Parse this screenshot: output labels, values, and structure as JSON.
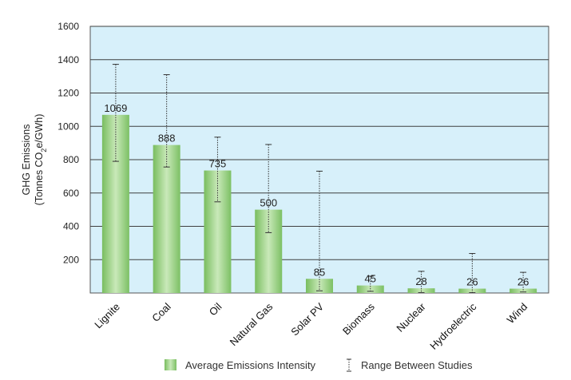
{
  "chart_data": {
    "type": "bar",
    "categories": [
      "Lignite",
      "Coal",
      "Oil",
      "Natural Gas",
      "Solar PV",
      "Biomass",
      "Nuclear",
      "Hydroelectric",
      "Wind"
    ],
    "series": [
      {
        "name": "Average Emissions Intensity",
        "values": [
          1069,
          888,
          735,
          500,
          85,
          45,
          28,
          26,
          26
        ],
        "range_low": [
          790,
          756,
          547,
          362,
          13,
          10,
          2,
          2,
          6
        ],
        "range_high": [
          1372,
          1310,
          935,
          891,
          731,
          101,
          130,
          237,
          124
        ]
      }
    ],
    "data_labels": [
      "1069",
      "888",
      "735",
      "500",
      "85",
      "45",
      "28",
      "26",
      "26"
    ],
    "title": "",
    "ylabel_line1": "GHG Emissions",
    "ylabel_line2_pre": "(Tonnes CO",
    "ylabel_line2_sub": "2",
    "ylabel_line2_post": "e/GWh)",
    "xlabel": "",
    "ylim": [
      0,
      1600
    ],
    "yticks": [
      200,
      400,
      600,
      800,
      1000,
      1200,
      1400,
      1600
    ],
    "grid": true,
    "legend": {
      "position": "bottom",
      "bar_label": "Average Emissions Intensity",
      "range_label": "Range Between Studies"
    },
    "colors": {
      "plot_background": "#d7f0fa",
      "bar": "#8fcc7a",
      "bar_highlight": "#c8e8b8",
      "gridline": "#404040",
      "range_line": "#333333"
    }
  }
}
